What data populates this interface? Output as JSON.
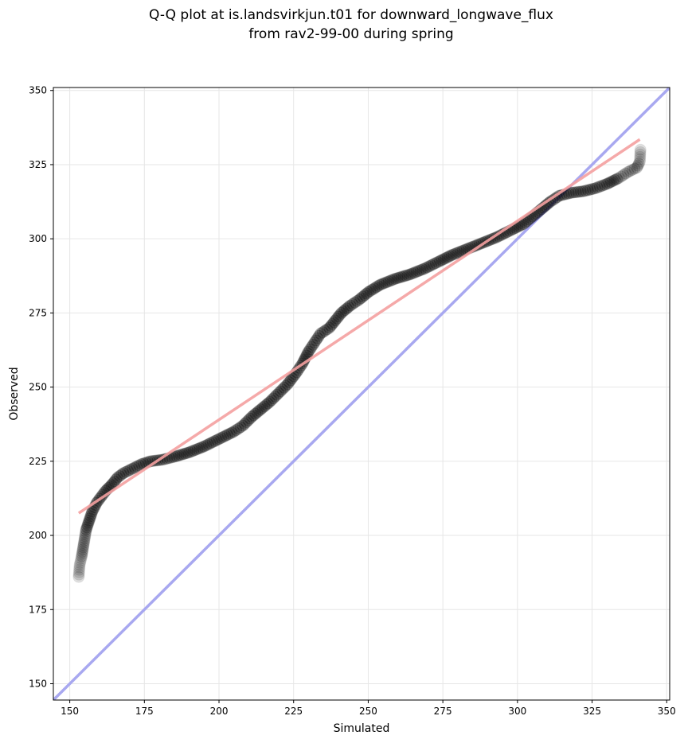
{
  "chart_data": {
    "type": "scatter",
    "title_lines": [
      "Q-Q plot at is.landsvirkjun.t01 for downward_longwave_flux",
      "from rav2-99-00 during spring"
    ],
    "xlabel": "Simulated",
    "ylabel": "Observed",
    "xlim": [
      144.5,
      351
    ],
    "ylim": [
      144.5,
      351
    ],
    "xticks": [
      150,
      175,
      200,
      225,
      250,
      275,
      300,
      325,
      350
    ],
    "yticks": [
      150,
      175,
      200,
      225,
      250,
      275,
      300,
      325,
      350
    ],
    "grid": true,
    "quantile_curve": [
      [
        153.0,
        186.0
      ],
      [
        153.3,
        190.0
      ],
      [
        154.0,
        193.0
      ],
      [
        154.5,
        196.0
      ],
      [
        155.0,
        199.0
      ],
      [
        155.5,
        202.0
      ],
      [
        156.5,
        205.0
      ],
      [
        157.5,
        208.0
      ],
      [
        159.0,
        211.0
      ],
      [
        160.5,
        213.0
      ],
      [
        162.0,
        215.0
      ],
      [
        164.0,
        217.0
      ],
      [
        166.0,
        219.5
      ],
      [
        168.0,
        221.0
      ],
      [
        171.0,
        222.5
      ],
      [
        174.0,
        224.0
      ],
      [
        177.0,
        225.0
      ],
      [
        181.0,
        225.5
      ],
      [
        185.0,
        226.5
      ],
      [
        190.0,
        228.0
      ],
      [
        195.0,
        230.0
      ],
      [
        200.0,
        232.5
      ],
      [
        205.0,
        235.0
      ],
      [
        208.0,
        237.0
      ],
      [
        211.0,
        240.0
      ],
      [
        214.0,
        242.5
      ],
      [
        217.0,
        245.0
      ],
      [
        220.0,
        248.0
      ],
      [
        223.0,
        251.0
      ],
      [
        226.0,
        255.0
      ],
      [
        228.0,
        258.0
      ],
      [
        230.0,
        262.0
      ],
      [
        232.0,
        265.0
      ],
      [
        234.0,
        268.0
      ],
      [
        237.0,
        270.0
      ],
      [
        239.0,
        272.5
      ],
      [
        241.0,
        275.0
      ],
      [
        244.0,
        277.5
      ],
      [
        247.0,
        279.5
      ],
      [
        250.0,
        282.0
      ],
      [
        254.0,
        284.5
      ],
      [
        259.0,
        286.5
      ],
      [
        264.0,
        288.0
      ],
      [
        269.0,
        290.0
      ],
      [
        274.0,
        292.5
      ],
      [
        278.0,
        294.5
      ],
      [
        283.0,
        296.5
      ],
      [
        288.0,
        298.5
      ],
      [
        293.0,
        300.5
      ],
      [
        298.0,
        303.0
      ],
      [
        302.0,
        305.0
      ],
      [
        305.0,
        307.5
      ],
      [
        308.0,
        310.0
      ],
      [
        311.0,
        312.5
      ],
      [
        314.0,
        314.5
      ],
      [
        318.0,
        315.5
      ],
      [
        322.0,
        316.0
      ],
      [
        326.0,
        317.0
      ],
      [
        330.0,
        318.5
      ],
      [
        334.0,
        320.5
      ],
      [
        337.0,
        322.5
      ],
      [
        340.0,
        324.0
      ],
      [
        341.0,
        326.0
      ],
      [
        341.2,
        330.0
      ]
    ],
    "fit_line": {
      "start": [
        153,
        207.5
      ],
      "end": [
        341,
        333.5
      ],
      "color": "#f4a0a0"
    },
    "identity_line": {
      "color": "#a8a8f0"
    },
    "marker_color": "#000000"
  }
}
